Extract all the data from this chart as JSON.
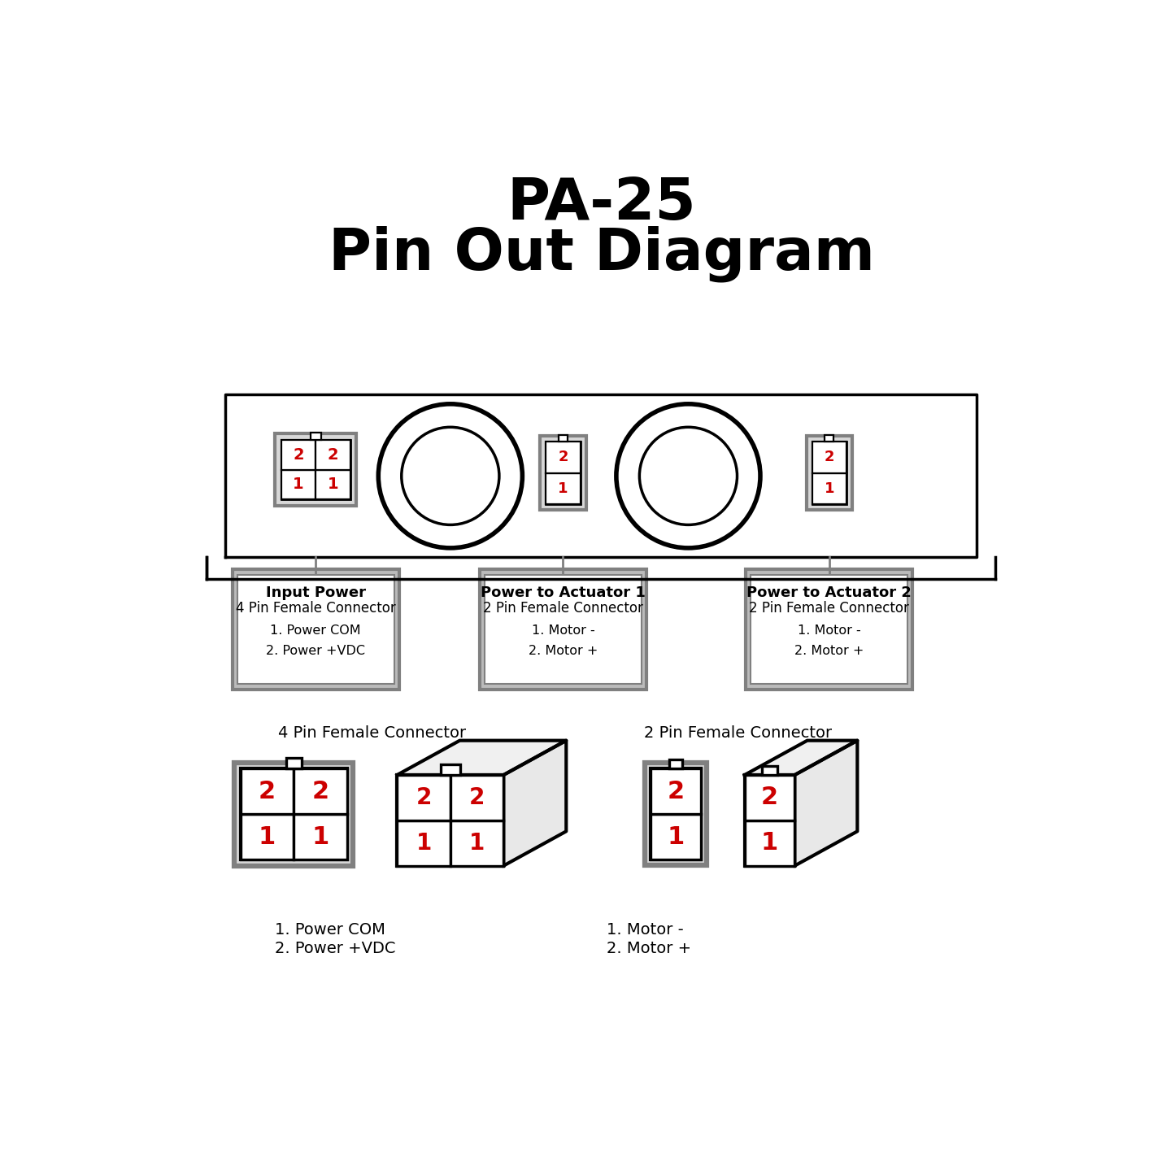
{
  "title_line1": "PA-25",
  "title_line2": "Pin Out Diagram",
  "bg_color": "#ffffff",
  "line_color": "#000000",
  "gray_color": "#808080",
  "red_color": "#cc0000",
  "box1_label_title": "Input Power",
  "box1_label_sub": "4 Pin Female Connector",
  "box1_label_items": [
    "1. Power COM",
    "2. Power +VDC"
  ],
  "box2_label_title": "Power to Actuator 1",
  "box2_label_sub": "2 Pin Female Connector",
  "box2_label_items": [
    "1. Motor -",
    "2. Motor +"
  ],
  "box3_label_title": "Power to Actuator 2",
  "box3_label_sub": "2 Pin Female Connector",
  "box3_label_items": [
    "1. Motor -",
    "2. Motor +"
  ],
  "bottom_label_4pin": "4 Pin Female Connector",
  "bottom_label_2pin": "2 Pin Female Connector",
  "bottom_items_4pin": [
    "1. Power COM",
    "2. Power +VDC"
  ],
  "bottom_items_2pin": [
    "1. Motor -",
    "2. Motor +"
  ]
}
